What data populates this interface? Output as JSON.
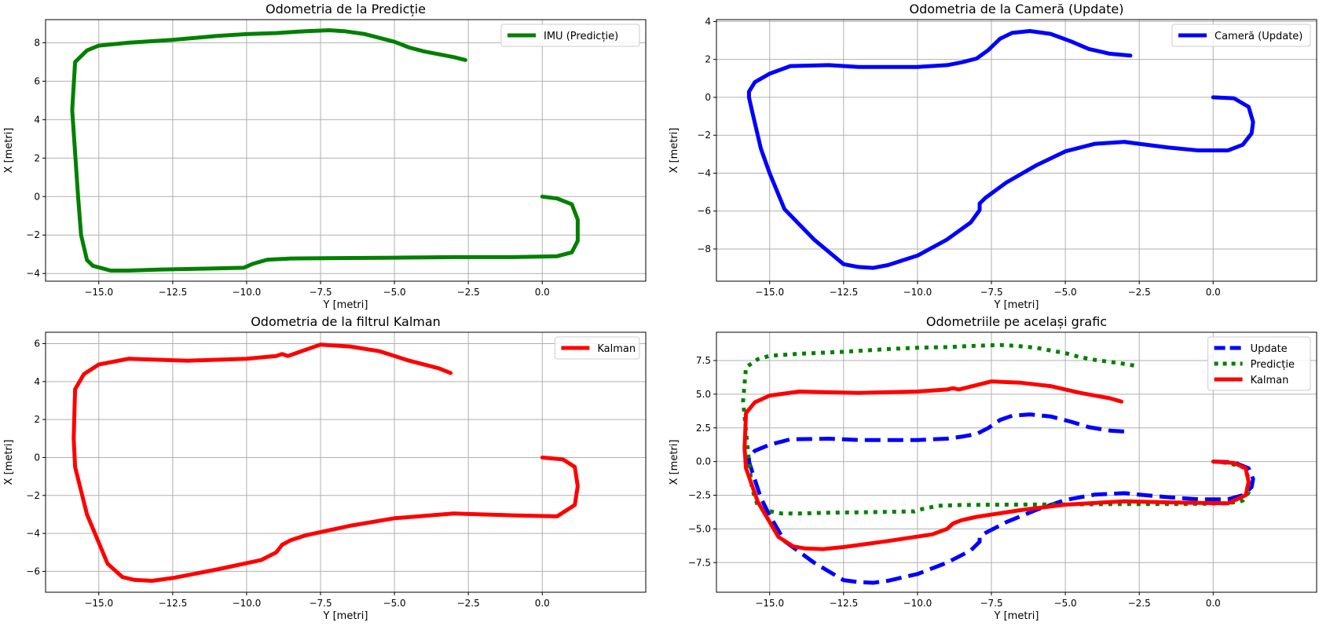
{
  "chart_data": [
    {
      "type": "line",
      "title": "Odometria de la Predicție",
      "xlabel": "Y [metri]",
      "ylabel": "X [metri]",
      "xlim": [
        -16.8,
        3.5
      ],
      "ylim": [
        -4.4,
        9.2
      ],
      "xticks": [
        -15.0,
        -12.5,
        -10.0,
        -7.5,
        -5.0,
        -2.5,
        0.0
      ],
      "xtick_labels": [
        "−15.0",
        "−12.5",
        "−10.0",
        "−7.5",
        "−5.0",
        "−2.5",
        "0.0"
      ],
      "yticks": [
        -4,
        -2,
        0,
        2,
        4,
        6,
        8
      ],
      "ytick_labels": [
        "−4",
        "−2",
        "0",
        "2",
        "4",
        "6",
        "8"
      ],
      "grid": true,
      "legend": "upper right",
      "series": [
        {
          "name": "IMU (Predicție)",
          "color": "#008000",
          "style": "solid",
          "x": [
            0,
            0.5,
            1.0,
            1.2,
            1.2,
            1.0,
            0.5,
            -1,
            -3,
            -5,
            -7,
            -8.5,
            -9.3,
            -9.8,
            -10.1,
            -11.5,
            -13,
            -14,
            -14.6,
            -15.2,
            -15.4,
            -15.6,
            -15.7,
            -15.9,
            -15.8,
            -15.4,
            -15.0,
            -14,
            -12.5,
            -11,
            -10,
            -9,
            -8,
            -7.2,
            -6.7,
            -6.0,
            -5.5,
            -5.0,
            -4.5,
            -4.0,
            -3.5,
            -3.0,
            -2.6
          ],
          "y": [
            0,
            -0.1,
            -0.4,
            -1.2,
            -2.3,
            -2.9,
            -3.1,
            -3.15,
            -3.15,
            -3.18,
            -3.2,
            -3.22,
            -3.28,
            -3.5,
            -3.7,
            -3.75,
            -3.8,
            -3.85,
            -3.85,
            -3.6,
            -3.3,
            -2,
            0,
            4.5,
            7.0,
            7.6,
            7.85,
            8.0,
            8.15,
            8.35,
            8.45,
            8.5,
            8.6,
            8.65,
            8.6,
            8.45,
            8.25,
            8.05,
            7.75,
            7.55,
            7.4,
            7.25,
            7.1
          ]
        }
      ]
    },
    {
      "type": "line",
      "title": "Odometria de la Cameră (Update)",
      "xlabel": "Y [metri]",
      "ylabel": "X [metri]",
      "xlim": [
        -16.8,
        3.5
      ],
      "ylim": [
        -9.7,
        4.1
      ],
      "xticks": [
        -15.0,
        -12.5,
        -10.0,
        -7.5,
        -5.0,
        -2.5,
        0.0
      ],
      "xtick_labels": [
        "−15.0",
        "−12.5",
        "−10.0",
        "−7.5",
        "−5.0",
        "−2.5",
        "0.0"
      ],
      "yticks": [
        -8,
        -6,
        -4,
        -2,
        0,
        2,
        4
      ],
      "ytick_labels": [
        "−8",
        "−6",
        "−4",
        "−2",
        "0",
        "2",
        "4"
      ],
      "grid": true,
      "legend": "upper right",
      "series": [
        {
          "name": "Cameră (Update)",
          "color": "#0000ff",
          "style": "solid",
          "x": [
            0,
            0.7,
            1.2,
            1.35,
            1.3,
            1.0,
            0.5,
            -0.5,
            -1.5,
            -2.5,
            -3.0,
            -4,
            -5,
            -6,
            -7,
            -7.7,
            -7.9,
            -7.9,
            -8.2,
            -9,
            -10,
            -11,
            -11.5,
            -12,
            -12.5,
            -13.5,
            -14.5,
            -15,
            -15.3,
            -15.6,
            -15.7,
            -15.7,
            -15.5,
            -15.0,
            -14.3,
            -13,
            -12,
            -10,
            -9,
            -8.5,
            -8.0,
            -7.6,
            -7.2,
            -6.8,
            -6.2,
            -5.5,
            -4.8,
            -4.2,
            -3.5,
            -2.8
          ],
          "y": [
            0,
            -0.05,
            -0.5,
            -1.3,
            -1.9,
            -2.5,
            -2.8,
            -2.8,
            -2.65,
            -2.45,
            -2.35,
            -2.45,
            -2.85,
            -3.6,
            -4.5,
            -5.3,
            -5.6,
            -5.95,
            -6.6,
            -7.5,
            -8.35,
            -8.85,
            -9.0,
            -8.95,
            -8.8,
            -7.5,
            -5.9,
            -4.0,
            -2.7,
            -0.7,
            0,
            0.3,
            0.8,
            1.25,
            1.65,
            1.7,
            1.6,
            1.6,
            1.7,
            1.85,
            2.05,
            2.5,
            3.1,
            3.4,
            3.5,
            3.35,
            2.95,
            2.55,
            2.3,
            2.2
          ]
        }
      ]
    },
    {
      "type": "line",
      "title": "Odometria de la filtrul Kalman",
      "xlabel": "Y [metri]",
      "ylabel": "X [metri]",
      "xlim": [
        -16.8,
        3.5
      ],
      "ylim": [
        -7.1,
        6.6
      ],
      "xticks": [
        -15.0,
        -12.5,
        -10.0,
        -7.5,
        -5.0,
        -2.5,
        0.0
      ],
      "xtick_labels": [
        "−15.0",
        "−12.5",
        "−10.0",
        "−7.5",
        "−5.0",
        "−2.5",
        "0.0"
      ],
      "yticks": [
        -6,
        -4,
        -2,
        0,
        2,
        4,
        6
      ],
      "ytick_labels": [
        "−6",
        "−4",
        "−2",
        "0",
        "2",
        "4",
        "6"
      ],
      "grid": true,
      "legend": "upper right",
      "series": [
        {
          "name": "Kalman",
          "color": "#ff0000",
          "style": "solid",
          "x": [
            0,
            0.7,
            1.1,
            1.2,
            1.1,
            0.5,
            -1,
            -3,
            -5,
            -6.5,
            -8.0,
            -8.5,
            -8.8,
            -9.0,
            -9.5,
            -11,
            -12.5,
            -13.2,
            -13.8,
            -14.2,
            -14.7,
            -15.4,
            -15.8,
            -15.85,
            -15.8,
            -15.5,
            -15.0,
            -14.0,
            -12,
            -10,
            -9.0,
            -8.8,
            -8.6,
            -7.5,
            -6.5,
            -5.5,
            -4.5,
            -3.5,
            -3.1
          ],
          "y": [
            0,
            -0.1,
            -0.5,
            -1.5,
            -2.5,
            -3.1,
            -3.05,
            -2.95,
            -3.2,
            -3.6,
            -4.1,
            -4.35,
            -4.6,
            -5.0,
            -5.4,
            -5.9,
            -6.35,
            -6.5,
            -6.45,
            -6.3,
            -5.6,
            -3.0,
            -0.5,
            1.0,
            3.6,
            4.4,
            4.9,
            5.2,
            5.1,
            5.2,
            5.35,
            5.45,
            5.35,
            5.95,
            5.85,
            5.6,
            5.1,
            4.7,
            4.45
          ]
        }
      ]
    },
    {
      "type": "line",
      "title": "Odometriile pe același grafic",
      "xlabel": "Y [metri]",
      "ylabel": "X [metri]",
      "xlim": [
        -16.8,
        3.5
      ],
      "ylim": [
        -9.7,
        9.6
      ],
      "xticks": [
        -15.0,
        -12.5,
        -10.0,
        -7.5,
        -5.0,
        -2.5,
        0.0
      ],
      "xtick_labels": [
        "−15.0",
        "−12.5",
        "−10.0",
        "−7.5",
        "−5.0",
        "−2.5",
        "0.0"
      ],
      "yticks": [
        -7.5,
        -5.0,
        -2.5,
        0.0,
        2.5,
        5.0,
        7.5
      ],
      "ytick_labels": [
        "−7.5",
        "−5.0",
        "−2.5",
        "0.0",
        "2.5",
        "5.0",
        "7.5"
      ],
      "grid": true,
      "legend": "upper right",
      "series": [
        {
          "name": "Update",
          "color": "#0000ff",
          "style": "dashed",
          "ref": 1
        },
        {
          "name": "Predicție",
          "color": "#008000",
          "style": "dotted",
          "ref": 0
        },
        {
          "name": "Kalman",
          "color": "#ff0000",
          "style": "solid",
          "ref": 2
        }
      ]
    }
  ]
}
